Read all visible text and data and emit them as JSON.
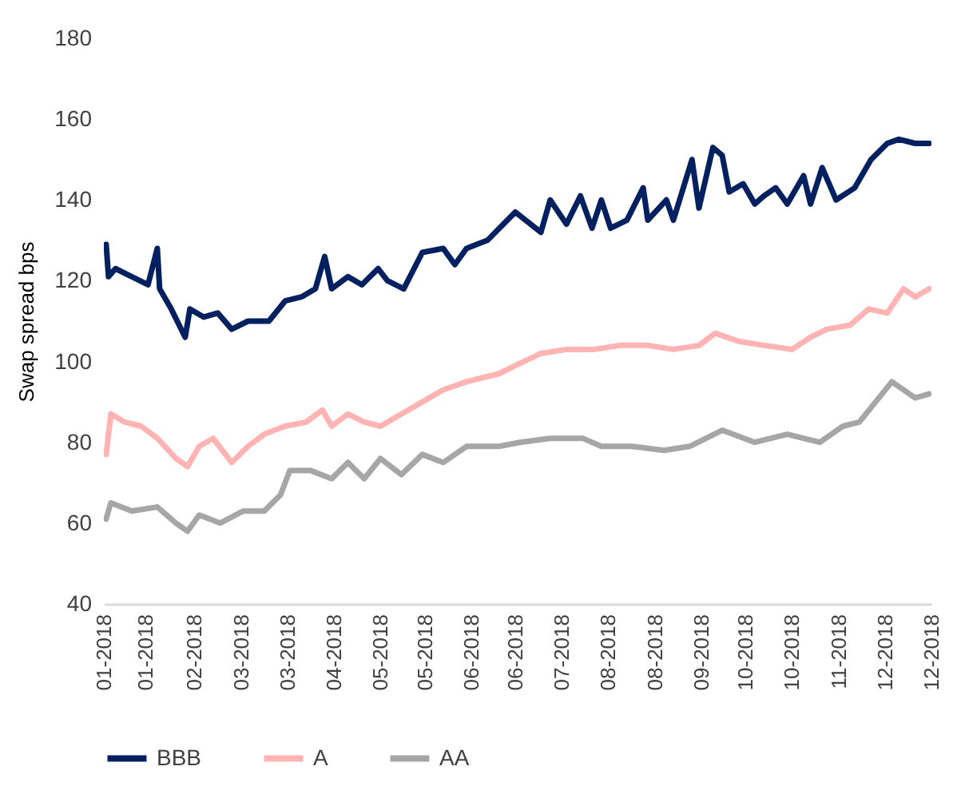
{
  "chart_data": {
    "type": "line",
    "ylabel": "Swap spread bps",
    "ylim": [
      40,
      180
    ],
    "yticks": [
      40,
      60,
      80,
      100,
      120,
      140,
      160,
      180
    ],
    "xlim": [
      "2018-01-02",
      "2018-12-24"
    ],
    "xticks": [
      {
        "value": "2018-01-02",
        "label": "01-2018"
      },
      {
        "value": "2018-01-20",
        "label": "01-2018"
      },
      {
        "value": "2018-02-10",
        "label": "02-2018"
      },
      {
        "value": "2018-03-02",
        "label": "03-2018"
      },
      {
        "value": "2018-03-22",
        "label": "03-2018"
      },
      {
        "value": "2018-04-11",
        "label": "04-2018"
      },
      {
        "value": "2018-05-01",
        "label": "05-2018"
      },
      {
        "value": "2018-05-20",
        "label": "05-2018"
      },
      {
        "value": "2018-06-09",
        "label": "06-2018"
      },
      {
        "value": "2018-06-28",
        "label": "06-2018"
      },
      {
        "value": "2018-07-18",
        "label": "07-2018"
      },
      {
        "value": "2018-08-07",
        "label": "08-2018"
      },
      {
        "value": "2018-08-27",
        "label": "08-2018"
      },
      {
        "value": "2018-09-16",
        "label": "09-2018"
      },
      {
        "value": "2018-10-05",
        "label": "10-2018"
      },
      {
        "value": "2018-10-25",
        "label": "10-2018"
      },
      {
        "value": "2018-11-14",
        "label": "11-2018"
      },
      {
        "value": "2018-12-04",
        "label": "12-2018"
      },
      {
        "value": "2018-12-24",
        "label": "12-2018"
      }
    ],
    "grid": false,
    "legend": "bottom",
    "marker": "none",
    "line_style": "solid",
    "series": [
      {
        "name": "BBB",
        "color": "#002060",
        "x": [
          "2018-01-03",
          "2018-01-04",
          "2018-01-07",
          "2018-01-14",
          "2018-01-21",
          "2018-01-25",
          "2018-01-26",
          "2018-01-31",
          "2018-02-06",
          "2018-02-08",
          "2018-02-14",
          "2018-02-20",
          "2018-02-26",
          "2018-03-05",
          "2018-03-14",
          "2018-03-21",
          "2018-03-28",
          "2018-04-03",
          "2018-04-07",
          "2018-04-10",
          "2018-04-17",
          "2018-04-23",
          "2018-04-30",
          "2018-05-04",
          "2018-05-11",
          "2018-05-19",
          "2018-05-28",
          "2018-06-02",
          "2018-06-07",
          "2018-06-16",
          "2018-06-28",
          "2018-07-09",
          "2018-07-13",
          "2018-07-20",
          "2018-07-26",
          "2018-07-31",
          "2018-08-04",
          "2018-08-08",
          "2018-08-15",
          "2018-08-22",
          "2018-08-24",
          "2018-09-01",
          "2018-09-04",
          "2018-09-12",
          "2018-09-15",
          "2018-09-21",
          "2018-09-25",
          "2018-09-28",
          "2018-10-04",
          "2018-10-09",
          "2018-10-13",
          "2018-10-18",
          "2018-10-23",
          "2018-10-30",
          "2018-11-02",
          "2018-11-07",
          "2018-11-13",
          "2018-11-21",
          "2018-11-28",
          "2018-12-05",
          "2018-12-10",
          "2018-12-17",
          "2018-12-23"
        ],
        "values": [
          129,
          121,
          123,
          121,
          119,
          128,
          118,
          113,
          106,
          113,
          111,
          112,
          108,
          110,
          110,
          115,
          116,
          118,
          126,
          118,
          121,
          119,
          123,
          120,
          118,
          127,
          128,
          124,
          128,
          130,
          137,
          132,
          140,
          134,
          141,
          133,
          140,
          133,
          135,
          143,
          135,
          140,
          135,
          150,
          138,
          153,
          151,
          142,
          144,
          139,
          141,
          143,
          139,
          146,
          139,
          148,
          140,
          143,
          150,
          154,
          155,
          154,
          154
        ]
      },
      {
        "name": "A",
        "color": "#ffb3b3",
        "x": [
          "2018-01-03",
          "2018-01-05",
          "2018-01-11",
          "2018-01-18",
          "2018-01-25",
          "2018-02-02",
          "2018-02-07",
          "2018-02-12",
          "2018-02-18",
          "2018-02-26",
          "2018-03-05",
          "2018-03-12",
          "2018-03-21",
          "2018-03-30",
          "2018-04-06",
          "2018-04-10",
          "2018-04-17",
          "2018-04-24",
          "2018-05-01",
          "2018-05-10",
          "2018-05-19",
          "2018-05-28",
          "2018-06-07",
          "2018-06-21",
          "2018-06-28",
          "2018-07-09",
          "2018-07-20",
          "2018-08-01",
          "2018-08-12",
          "2018-08-24",
          "2018-09-04",
          "2018-09-15",
          "2018-09-22",
          "2018-10-02",
          "2018-10-13",
          "2018-10-25",
          "2018-11-02",
          "2018-11-09",
          "2018-11-19",
          "2018-11-27",
          "2018-12-05",
          "2018-12-12",
          "2018-12-17",
          "2018-12-23"
        ],
        "values": [
          77,
          87,
          85,
          84,
          81,
          76,
          74,
          79,
          81,
          75,
          79,
          82,
          84,
          85,
          88,
          84,
          87,
          85,
          84,
          87,
          90,
          93,
          95,
          97,
          99,
          102,
          103,
          103,
          104,
          104,
          103,
          104,
          107,
          105,
          104,
          103,
          106,
          108,
          109,
          113,
          112,
          118,
          116,
          118
        ]
      },
      {
        "name": "AA",
        "color": "#a6a6a6",
        "x": [
          "2018-01-03",
          "2018-01-05",
          "2018-01-14",
          "2018-01-25",
          "2018-02-02",
          "2018-02-07",
          "2018-02-12",
          "2018-02-21",
          "2018-03-03",
          "2018-03-12",
          "2018-03-19",
          "2018-03-23",
          "2018-04-01",
          "2018-04-10",
          "2018-04-17",
          "2018-04-24",
          "2018-05-01",
          "2018-05-10",
          "2018-05-19",
          "2018-05-28",
          "2018-06-07",
          "2018-06-21",
          "2018-06-30",
          "2018-07-13",
          "2018-07-27",
          "2018-08-04",
          "2018-08-17",
          "2018-08-31",
          "2018-09-11",
          "2018-09-25",
          "2018-10-09",
          "2018-10-23",
          "2018-11-06",
          "2018-11-16",
          "2018-11-23",
          "2018-11-30",
          "2018-12-07",
          "2018-12-17",
          "2018-12-23"
        ],
        "values": [
          61,
          65,
          63,
          64,
          60,
          58,
          62,
          60,
          63,
          63,
          67,
          73,
          73,
          71,
          75,
          71,
          76,
          72,
          77,
          75,
          79,
          79,
          80,
          81,
          81,
          79,
          79,
          78,
          79,
          83,
          80,
          82,
          80,
          84,
          85,
          90,
          95,
          91,
          92
        ]
      }
    ]
  }
}
